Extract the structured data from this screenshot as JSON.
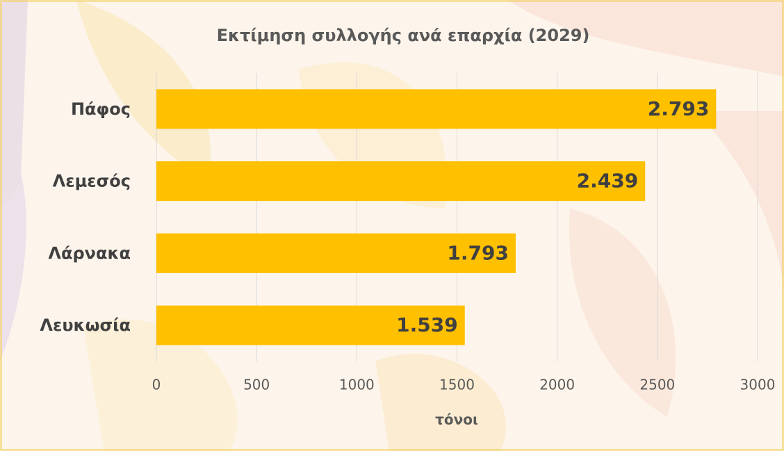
{
  "chart_data": {
    "type": "bar",
    "orientation": "horizontal",
    "title": "Εκτίμηση συλλογής ανά επαρχία (2029)",
    "categories": [
      "Πάφος",
      "Λεμεσός",
      "Λάρνακα",
      "Λευκωσία"
    ],
    "values": [
      2793,
      2439,
      1793,
      1539
    ],
    "value_labels": [
      "2.793",
      "2.439",
      "1.793",
      "1.539"
    ],
    "color": "#ffc000",
    "xlim": [
      0,
      3000
    ],
    "xticks": [
      0,
      500,
      1000,
      1500,
      2000,
      2500,
      3000
    ],
    "xlabel": "τόνοι",
    "grid": true
  }
}
